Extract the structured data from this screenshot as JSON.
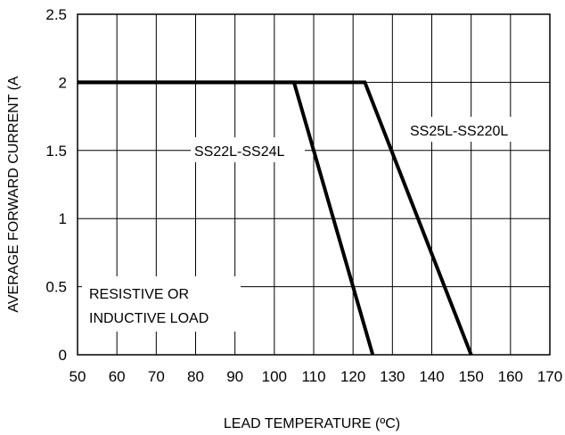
{
  "chart_data": {
    "type": "line",
    "xlabel": "LEAD TEMPERATURE (ºC)",
    "ylabel": "AVERAGE FORWARD CURRENT (A",
    "xlim": [
      50,
      170
    ],
    "ylim": [
      0,
      2.5
    ],
    "x_ticks": [
      "50",
      "60",
      "70",
      "80",
      "90",
      "100",
      "110",
      "120",
      "130",
      "140",
      "150",
      "160",
      "170"
    ],
    "y_ticks": [
      "0",
      "0.5",
      "1",
      "1.5",
      "2",
      "2.5"
    ],
    "grid": true,
    "series": [
      {
        "name": "SS22L-SS24L",
        "x": [
          50,
          105,
          125
        ],
        "y": [
          2,
          2,
          0
        ]
      },
      {
        "name": "SS25L-SS220L",
        "x": [
          50,
          123,
          150
        ],
        "y": [
          2,
          2,
          0
        ]
      }
    ],
    "annotations": {
      "load": [
        "RESISTIVE OR",
        "INDUCTIVE LOAD"
      ]
    }
  }
}
